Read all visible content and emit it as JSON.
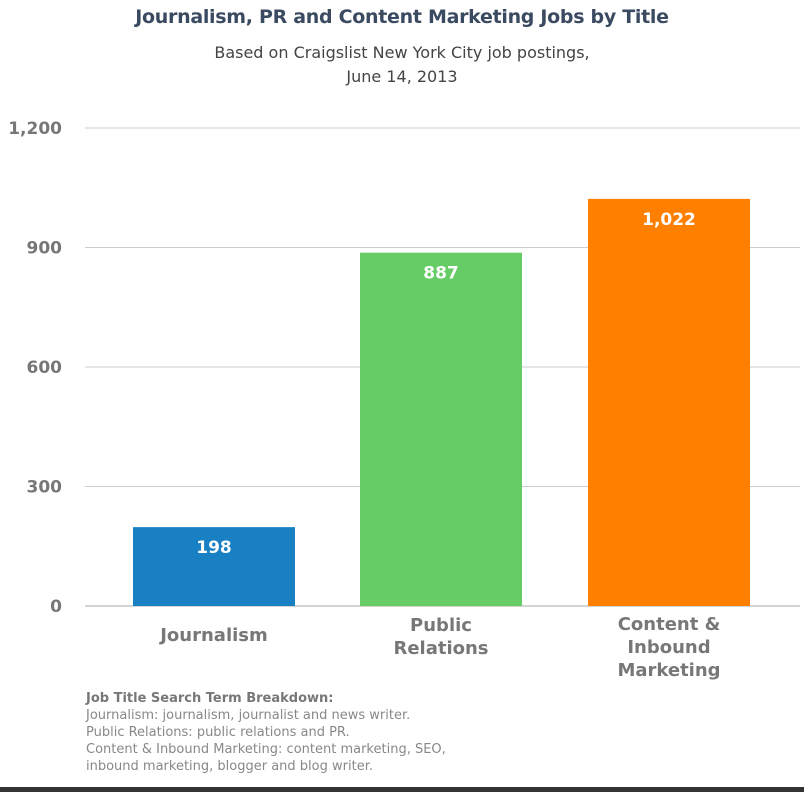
{
  "chart_data": {
    "type": "bar",
    "title": "Journalism, PR and Content Marketing Jobs by Title",
    "subtitle": [
      "Based on Craigslist New York City job postings,",
      "June 14, 2013"
    ],
    "categories": [
      [
        "Journalism"
      ],
      [
        "Public",
        "Relations"
      ],
      [
        "Content &",
        "Inbound",
        "Marketing"
      ]
    ],
    "values": [
      198,
      887,
      1022
    ],
    "data_labels": [
      "198",
      "887",
      "1,022"
    ],
    "colors": [
      "#1a80c4",
      "#66cc66",
      "#ff7f00"
    ],
    "ylim": [
      0,
      1200
    ],
    "yticks": [
      0,
      300,
      600,
      900,
      1200
    ],
    "ytick_labels": [
      "0",
      "300",
      "600",
      "900",
      "1,200"
    ],
    "grid": true,
    "xlabel": "",
    "ylabel": ""
  },
  "notes": {
    "heading": "Job Title Search Term Breakdown:",
    "lines": [
      "Journalism: journalism, journalist and news writer.",
      "Public Relations: public relations and PR.",
      "Content & Inbound Marketing: content marketing, SEO,",
      "inbound marketing, blogger and blog writer."
    ]
  }
}
